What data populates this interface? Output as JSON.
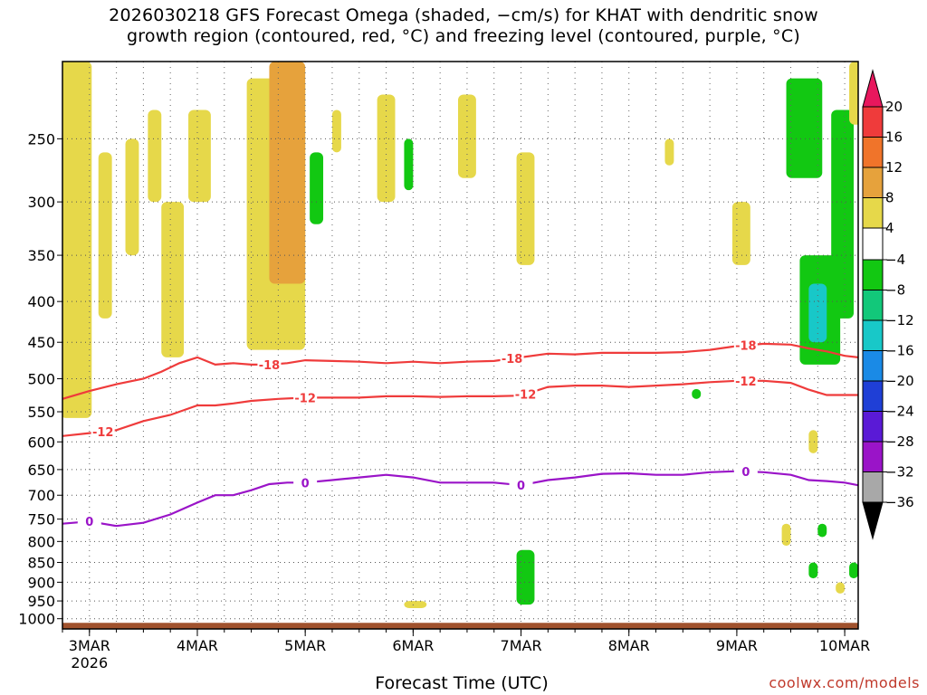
{
  "title_line1": "2026030218 GFS Forecast Omega (shaded, −cm/s) for KHAT with dendritic snow",
  "title_line2": "growth region (contoured, red, °C) and freezing level (contoured, purple, °C)",
  "xlabel": "Forecast Time (UTC)",
  "credit": "coolwx.com/models",
  "chart_data": {
    "type": "heatmap",
    "title": "2026030218 GFS Forecast Omega (shaded, −cm/s) for KHAT with dendritic snow growth region (contoured, red, °C) and freezing level (contoured, purple, °C)",
    "xlabel": "Forecast Time (UTC)",
    "ylabel": "",
    "x_unit": "forecast hour from 2026-03-02 18 UTC",
    "xlim": [
      0,
      177
    ],
    "ylim": [
      1030,
      200
    ],
    "y_scale": "log pressure (hPa)",
    "y_ticks": [
      250,
      300,
      350,
      400,
      450,
      500,
      550,
      600,
      650,
      700,
      750,
      800,
      850,
      900,
      950,
      1000
    ],
    "x_ticks": [
      {
        "hour": 6,
        "label": "3MAR",
        "sublabel": "2026"
      },
      {
        "hour": 30,
        "label": "4MAR"
      },
      {
        "hour": 54,
        "label": "5MAR"
      },
      {
        "hour": 78,
        "label": "6MAR"
      },
      {
        "hour": 102,
        "label": "7MAR"
      },
      {
        "hour": 126,
        "label": "8MAR"
      },
      {
        "hour": 150,
        "label": "9MAR"
      },
      {
        "hour": 174,
        "label": "10MAR"
      }
    ],
    "grid": true,
    "colorbar": {
      "labels": [
        "20",
        "16",
        "12",
        "8",
        "4",
        "−4",
        "−8",
        "−12",
        "−16",
        "−20",
        "−24",
        "−28",
        "−32",
        "−36"
      ],
      "colors": [
        "#e8175d",
        "#ef3b3b",
        "#f0742a",
        "#e6a23c",
        "#e6d84a",
        "#ffffff",
        "#12c812",
        "#12c87a",
        "#18c8c8",
        "#1a8ae6",
        "#1f3fd6",
        "#5a1ad6",
        "#9a14c8",
        "#a8a8a8",
        "#000000"
      ],
      "note": "between 4 and −4 is white"
    },
    "shaded_regions": [
      {
        "color": "#e6d84a",
        "x": [
          -0.5,
          6.5
        ],
        "p": [
          200,
          560
        ]
      },
      {
        "color": "#e6d84a",
        "x": [
          8,
          11
        ],
        "p": [
          260,
          420
        ]
      },
      {
        "color": "#e6d84a",
        "x": [
          14,
          17
        ],
        "p": [
          250,
          350
        ]
      },
      {
        "color": "#e6d84a",
        "x": [
          19,
          22
        ],
        "p": [
          230,
          300
        ]
      },
      {
        "color": "#e6d84a",
        "x": [
          22,
          27
        ],
        "p": [
          300,
          470
        ]
      },
      {
        "color": "#e6d84a",
        "x": [
          28,
          33
        ],
        "p": [
          230,
          300
        ]
      },
      {
        "color": "#e6d84a",
        "x": [
          41,
          54
        ],
        "p": [
          210,
          460
        ]
      },
      {
        "color": "#e6a23c",
        "x": [
          46,
          54
        ],
        "p": [
          200,
          380
        ]
      },
      {
        "color": "#12c812",
        "x": [
          55,
          58
        ],
        "p": [
          260,
          320
        ]
      },
      {
        "color": "#e6d84a",
        "x": [
          60,
          62
        ],
        "p": [
          230,
          260
        ]
      },
      {
        "color": "#e6d84a",
        "x": [
          70,
          74
        ],
        "p": [
          220,
          300
        ]
      },
      {
        "color": "#12c812",
        "x": [
          76,
          78
        ],
        "p": [
          250,
          290
        ]
      },
      {
        "color": "#e6d84a",
        "x": [
          88,
          92
        ],
        "p": [
          220,
          280
        ]
      },
      {
        "color": "#e6d84a",
        "x": [
          101,
          105
        ],
        "p": [
          260,
          360
        ]
      },
      {
        "color": "#e6d84a",
        "x": [
          76,
          81
        ],
        "p": [
          950,
          970
        ]
      },
      {
        "color": "#12c812",
        "x": [
          101,
          105
        ],
        "p": [
          820,
          960
        ]
      },
      {
        "color": "#e6d84a",
        "x": [
          134,
          136
        ],
        "p": [
          250,
          270
        ]
      },
      {
        "color": "#e6d84a",
        "x": [
          149,
          153
        ],
        "p": [
          300,
          360
        ]
      },
      {
        "color": "#12c812",
        "x": [
          161,
          169
        ],
        "p": [
          210,
          280
        ]
      },
      {
        "color": "#12c812",
        "x": [
          164,
          173
        ],
        "p": [
          350,
          480
        ]
      },
      {
        "color": "#18c8c8",
        "x": [
          166,
          170
        ],
        "p": [
          380,
          450
        ]
      },
      {
        "color": "#12c812",
        "x": [
          171,
          176
        ],
        "p": [
          230,
          420
        ]
      },
      {
        "color": "#e6d84a",
        "x": [
          175,
          178
        ],
        "p": [
          200,
          240
        ]
      },
      {
        "color": "#e6d84a",
        "x": [
          166,
          168
        ],
        "p": [
          580,
          620
        ]
      },
      {
        "color": "#e6d84a",
        "x": [
          160,
          162
        ],
        "p": [
          760,
          810
        ]
      },
      {
        "color": "#12c812",
        "x": [
          168,
          170
        ],
        "p": [
          760,
          790
        ]
      },
      {
        "color": "#12c812",
        "x": [
          166,
          168
        ],
        "p": [
          850,
          890
        ]
      },
      {
        "color": "#12c812",
        "x": [
          175,
          177
        ],
        "p": [
          850,
          890
        ]
      },
      {
        "color": "#e6d84a",
        "x": [
          172,
          174
        ],
        "p": [
          900,
          930
        ]
      },
      {
        "color": "#12c812",
        "x": [
          140,
          142
        ],
        "p": [
          515,
          530
        ]
      }
    ],
    "contours": [
      {
        "name": "dendritic top",
        "level": "-18",
        "color": "#ef3b3b",
        "x": [
          0,
          6,
          12,
          18,
          22,
          26,
          30,
          34,
          38,
          42,
          46,
          50,
          54,
          60,
          66,
          72,
          78,
          84,
          90,
          96,
          102,
          108,
          114,
          120,
          126,
          132,
          138,
          144,
          150,
          156,
          162,
          166,
          170,
          174,
          177
        ],
        "p": [
          530,
          518,
          508,
          500,
          490,
          478,
          470,
          480,
          478,
          480,
          480,
          478,
          474,
          475,
          476,
          478,
          476,
          478,
          476,
          475,
          470,
          465,
          466,
          464,
          464,
          464,
          463,
          460,
          455,
          452,
          453,
          458,
          462,
          468,
          470
        ],
        "labels": [
          {
            "x": 46,
            "text": "-18"
          },
          {
            "x": 100,
            "text": "-18"
          },
          {
            "x": 152,
            "text": "-18"
          }
        ]
      },
      {
        "name": "dendritic bottom",
        "level": "-12",
        "color": "#ef3b3b",
        "x": [
          0,
          6,
          12,
          18,
          24,
          30,
          34,
          38,
          42,
          48,
          54,
          60,
          66,
          72,
          78,
          84,
          90,
          96,
          102,
          108,
          114,
          120,
          126,
          132,
          138,
          144,
          150,
          156,
          162,
          166,
          170,
          174,
          177
        ],
        "p": [
          590,
          585,
          580,
          565,
          555,
          540,
          540,
          537,
          533,
          530,
          528,
          528,
          528,
          526,
          526,
          527,
          526,
          526,
          525,
          512,
          510,
          510,
          512,
          510,
          508,
          505,
          503,
          503,
          506,
          516,
          524,
          524,
          524
        ],
        "labels": [
          {
            "x": 9,
            "text": "-12"
          },
          {
            "x": 54,
            "text": "-12"
          },
          {
            "x": 103,
            "text": "-12"
          },
          {
            "x": 152,
            "text": "-12"
          }
        ]
      },
      {
        "name": "freezing level",
        "level": "0",
        "color": "#9a14c8",
        "x": [
          0,
          6,
          12,
          18,
          24,
          30,
          34,
          38,
          42,
          46,
          50,
          54,
          60,
          66,
          72,
          78,
          84,
          90,
          96,
          102,
          108,
          114,
          120,
          126,
          132,
          138,
          144,
          150,
          156,
          162,
          166,
          170,
          174,
          177
        ],
        "p": [
          760,
          755,
          765,
          758,
          740,
          715,
          700,
          700,
          690,
          678,
          675,
          675,
          670,
          665,
          660,
          665,
          675,
          675,
          675,
          680,
          670,
          665,
          658,
          657,
          660,
          660,
          655,
          653,
          655,
          660,
          670,
          672,
          675,
          680
        ],
        "labels": [
          {
            "x": 6,
            "text": "0"
          },
          {
            "x": 54,
            "text": "0"
          },
          {
            "x": 102,
            "text": "0"
          },
          {
            "x": 152,
            "text": "0"
          }
        ]
      }
    ],
    "terrain_surface_p": 1030
  }
}
